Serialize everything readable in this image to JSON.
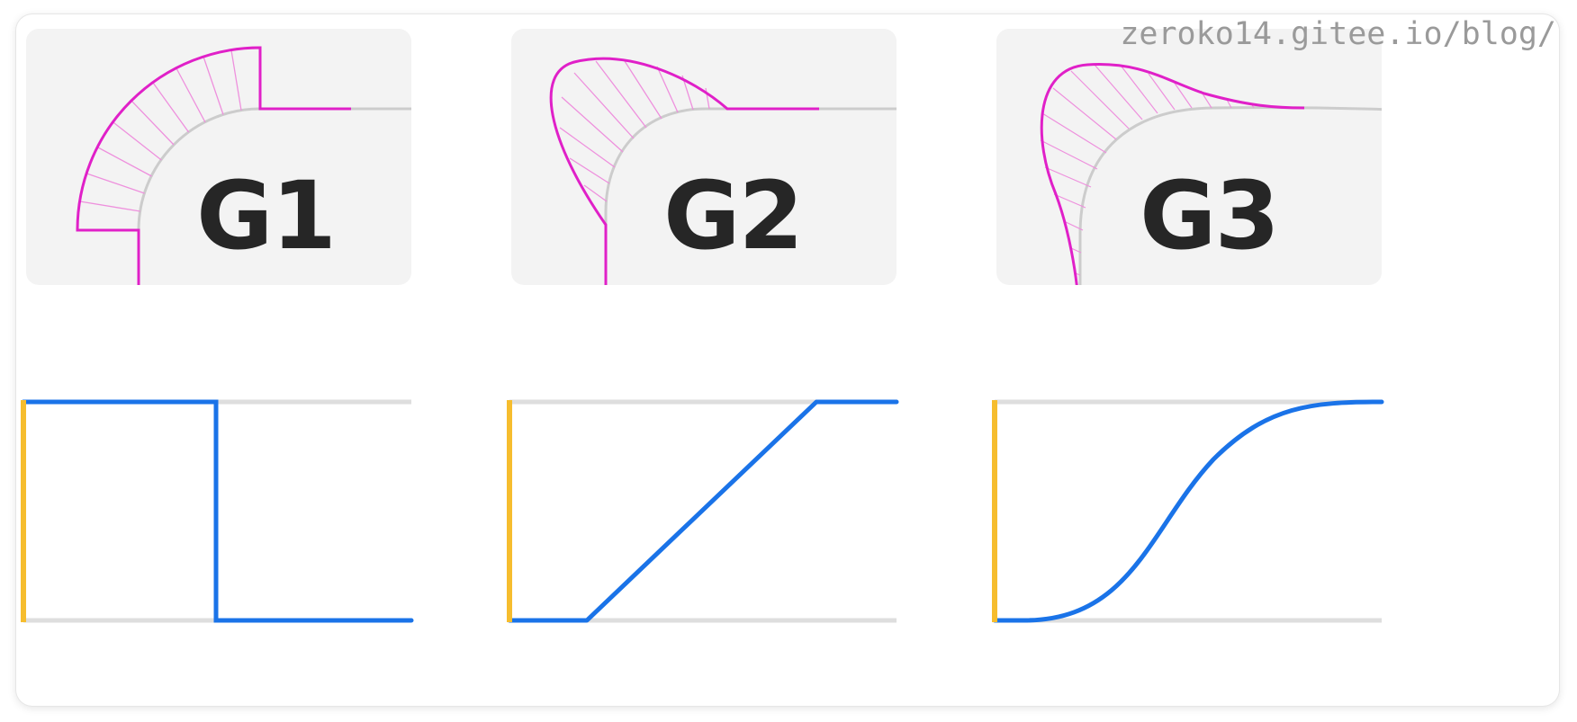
{
  "watermark": "zeroko14.gitee.io/blog/",
  "panels": [
    {
      "label": "G1"
    },
    {
      "label": "G2"
    },
    {
      "label": "G3"
    }
  ],
  "colors": {
    "panel_bg": "#f3f3f3",
    "corner_outline": "#cccccc",
    "curvature_comb": "#e020c8",
    "curvature_comb_hatch": "#ee90dd",
    "curvature_plot": "#1a73e8",
    "plot_axis": "#f6bd2e",
    "plot_grid": "#dedede"
  }
}
